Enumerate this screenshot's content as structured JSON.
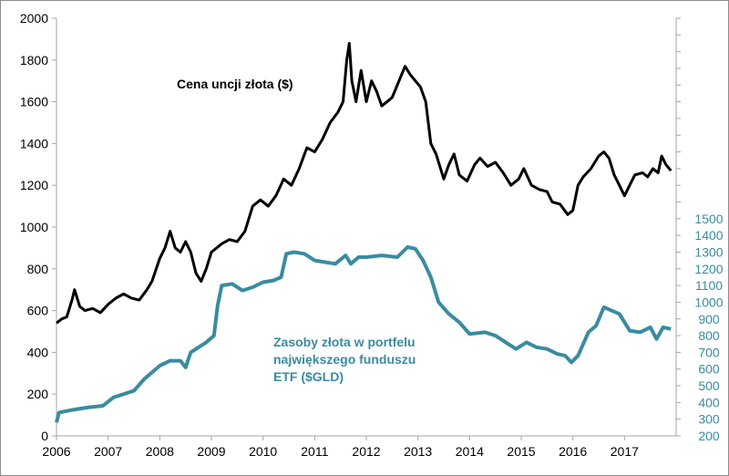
{
  "chart_data": {
    "type": "line",
    "title": "",
    "xlabel": "",
    "ylabel": "",
    "xlim": [
      2006,
      2018
    ],
    "x_ticks": [
      "2006",
      "2007",
      "2008",
      "2009",
      "2010",
      "2011",
      "2012",
      "2013",
      "2014",
      "2015",
      "2016",
      "2017"
    ],
    "y_left": {
      "range": [
        0,
        2000
      ],
      "ticks": [
        "0",
        "200",
        "400",
        "600",
        "800",
        "1000",
        "1200",
        "1400",
        "1600",
        "1800",
        "2000"
      ]
    },
    "y_right": {
      "range": [
        200,
        2700
      ],
      "ticks": [
        "200",
        "300",
        "400",
        "500",
        "600",
        "700",
        "800",
        "900",
        "1000",
        "1100",
        "1200",
        "1300",
        "1400",
        "1500"
      ],
      "color": "#3a8ba0"
    },
    "series": [
      {
        "name": "Cena uncji złota ($)",
        "axis": "left",
        "color": "#000000",
        "x": [
          2006.0,
          2006.1,
          2006.2,
          2006.3,
          2006.35,
          2006.45,
          2006.55,
          2006.7,
          2006.85,
          2007.0,
          2007.15,
          2007.3,
          2007.45,
          2007.6,
          2007.75,
          2007.85,
          2008.0,
          2008.1,
          2008.2,
          2008.3,
          2008.4,
          2008.5,
          2008.6,
          2008.7,
          2008.8,
          2008.9,
          2009.0,
          2009.1,
          2009.2,
          2009.35,
          2009.5,
          2009.65,
          2009.8,
          2009.95,
          2010.1,
          2010.25,
          2010.4,
          2010.55,
          2010.7,
          2010.85,
          2011.0,
          2011.15,
          2011.3,
          2011.45,
          2011.55,
          2011.62,
          2011.67,
          2011.72,
          2011.8,
          2011.9,
          2012.0,
          2012.1,
          2012.2,
          2012.3,
          2012.4,
          2012.5,
          2012.6,
          2012.75,
          2012.85,
          2012.95,
          2013.05,
          2013.15,
          2013.25,
          2013.35,
          2013.5,
          2013.6,
          2013.7,
          2013.8,
          2013.95,
          2014.1,
          2014.2,
          2014.35,
          2014.5,
          2014.65,
          2014.8,
          2014.95,
          2015.05,
          2015.2,
          2015.35,
          2015.5,
          2015.6,
          2015.75,
          2015.9,
          2016.0,
          2016.1,
          2016.2,
          2016.35,
          2016.5,
          2016.6,
          2016.7,
          2016.8,
          2016.9,
          2017.0,
          2017.1,
          2017.2,
          2017.35,
          2017.45,
          2017.55,
          2017.65,
          2017.72,
          2017.8,
          2017.9
        ],
        "values": [
          540,
          560,
          570,
          650,
          700,
          620,
          600,
          610,
          590,
          630,
          660,
          680,
          660,
          650,
          700,
          740,
          850,
          900,
          980,
          900,
          880,
          930,
          880,
          780,
          740,
          800,
          880,
          900,
          920,
          940,
          930,
          980,
          1100,
          1130,
          1100,
          1150,
          1230,
          1200,
          1280,
          1380,
          1360,
          1420,
          1500,
          1550,
          1600,
          1800,
          1880,
          1700,
          1600,
          1750,
          1600,
          1700,
          1650,
          1580,
          1600,
          1620,
          1680,
          1770,
          1730,
          1700,
          1670,
          1600,
          1400,
          1350,
          1230,
          1300,
          1350,
          1250,
          1220,
          1300,
          1330,
          1290,
          1310,
          1260,
          1200,
          1230,
          1280,
          1200,
          1180,
          1170,
          1120,
          1110,
          1060,
          1080,
          1200,
          1240,
          1280,
          1340,
          1360,
          1330,
          1250,
          1200,
          1150,
          1200,
          1250,
          1260,
          1240,
          1280,
          1260,
          1340,
          1300,
          1270
        ]
      },
      {
        "name": "Zasoby złota w portfelu największego funduszu ETF ($GLD)",
        "axis": "right",
        "color": "#3a8ba0",
        "x": [
          2006.0,
          2006.05,
          2006.3,
          2006.6,
          2006.9,
          2007.1,
          2007.3,
          2007.5,
          2007.7,
          2007.85,
          2008.0,
          2008.2,
          2008.4,
          2008.5,
          2008.6,
          2008.75,
          2008.9,
          2009.05,
          2009.12,
          2009.2,
          2009.4,
          2009.6,
          2009.8,
          2010.0,
          2010.2,
          2010.35,
          2010.45,
          2010.6,
          2010.8,
          2011.0,
          2011.2,
          2011.4,
          2011.6,
          2011.7,
          2011.85,
          2012.0,
          2012.3,
          2012.6,
          2012.8,
          2012.95,
          2013.1,
          2013.25,
          2013.4,
          2013.6,
          2013.8,
          2014.0,
          2014.3,
          2014.5,
          2014.7,
          2014.9,
          2015.1,
          2015.3,
          2015.5,
          2015.7,
          2015.85,
          2015.97,
          2016.1,
          2016.3,
          2016.45,
          2016.6,
          2016.75,
          2016.9,
          2017.1,
          2017.3,
          2017.5,
          2017.62,
          2017.75,
          2017.9
        ],
        "values": [
          280,
          340,
          355,
          370,
          380,
          430,
          450,
          470,
          540,
          580,
          620,
          650,
          650,
          610,
          700,
          730,
          760,
          800,
          980,
          1100,
          1110,
          1070,
          1090,
          1120,
          1130,
          1150,
          1290,
          1300,
          1290,
          1250,
          1240,
          1230,
          1280,
          1230,
          1270,
          1270,
          1280,
          1270,
          1330,
          1320,
          1250,
          1150,
          1000,
          930,
          880,
          810,
          820,
          800,
          760,
          720,
          760,
          730,
          720,
          690,
          680,
          640,
          680,
          820,
          860,
          970,
          950,
          930,
          830,
          820,
          850,
          780,
          850,
          840
        ]
      }
    ],
    "annotations": {
      "gold_label": "Cena uncji złota ($)",
      "etf_label_lines": [
        "Zasoby złota w portfelu",
        "największego funduszu",
        "ETF ($GLD)"
      ]
    },
    "legend": "none",
    "grid": false
  }
}
